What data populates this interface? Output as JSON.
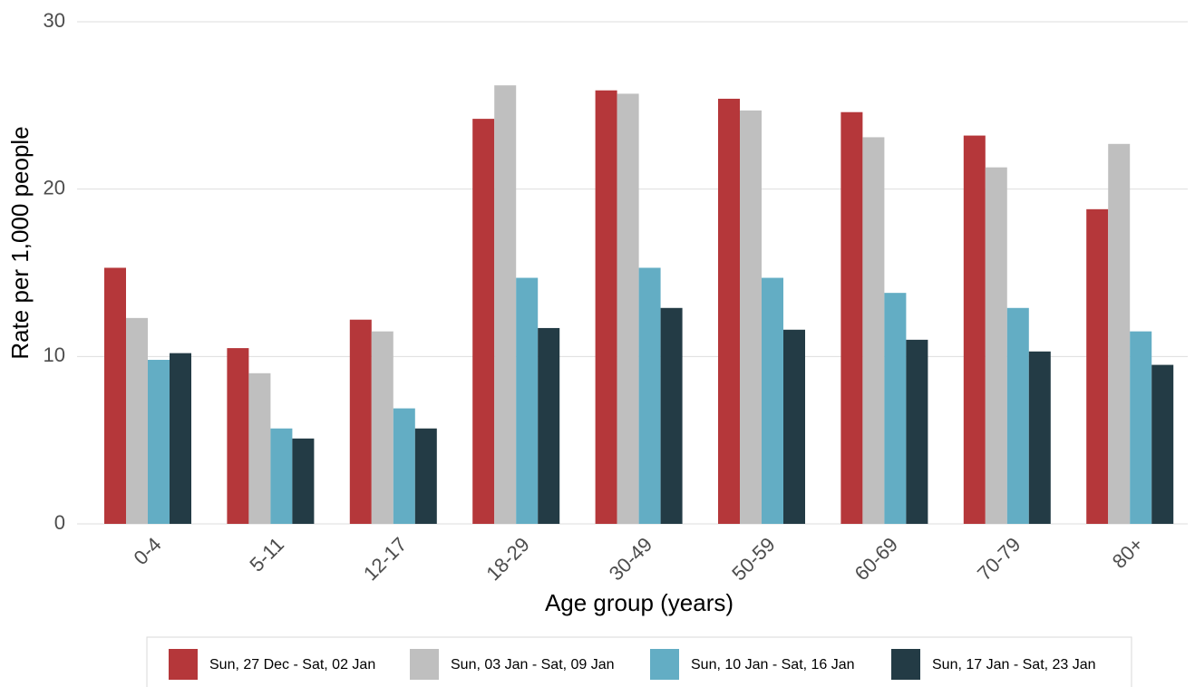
{
  "chart_data": {
    "type": "bar",
    "x_label": "Age group (years)",
    "y_label": "Rate per 1,000 people",
    "categories": [
      "0-4",
      "5-11",
      "12-17",
      "18-29",
      "30-49",
      "50-59",
      "60-69",
      "70-79",
      "80+"
    ],
    "series": [
      {
        "name": "Sun, 27 Dec - Sat, 02 Jan",
        "color": "#b5373a",
        "values": [
          15.3,
          10.5,
          12.2,
          24.2,
          25.9,
          25.4,
          24.6,
          23.2,
          18.8
        ]
      },
      {
        "name": "Sun, 03 Jan - Sat, 09 Jan",
        "color": "#bfbfbf",
        "values": [
          12.3,
          9.0,
          11.5,
          26.2,
          25.7,
          24.7,
          23.1,
          21.3,
          22.7
        ]
      },
      {
        "name": "Sun, 10 Jan - Sat, 16 Jan",
        "color": "#63adc4",
        "values": [
          9.8,
          5.7,
          6.9,
          14.7,
          15.3,
          14.7,
          13.8,
          12.9,
          11.5
        ]
      },
      {
        "name": "Sun, 17 Jan - Sat, 23 Jan",
        "color": "#233b45",
        "values": [
          10.2,
          5.1,
          5.7,
          11.7,
          12.9,
          11.6,
          11.0,
          10.3,
          9.5
        ]
      }
    ],
    "ylim": [
      0,
      30
    ],
    "yticks": [
      0,
      10,
      20,
      30
    ],
    "grid": true,
    "legend": "bottom"
  }
}
